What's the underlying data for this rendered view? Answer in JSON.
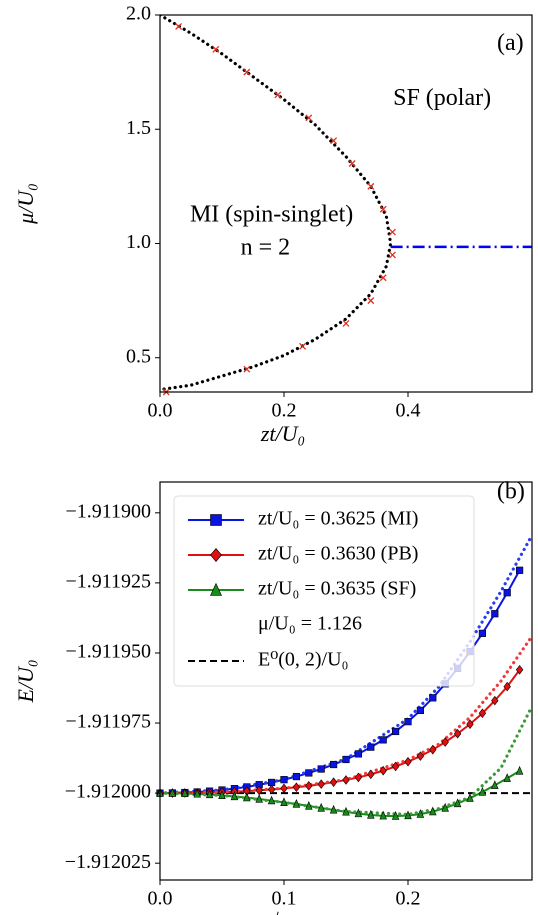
{
  "chart_data": [
    {
      "type": "line",
      "xlabel": "zt/U₀",
      "ylabel": "μ/U₀",
      "xlim": [
        0,
        0.6
      ],
      "ylim": [
        0.35,
        2.0
      ],
      "xticks": [
        {
          "value": 0,
          "label": "0.0"
        },
        0.2,
        0.4
      ],
      "yticks": [
        0.5,
        {
          "value": 1,
          "label": "1.0"
        },
        1.5,
        {
          "value": 2,
          "label": "2.0"
        }
      ],
      "annotations": [
        {
          "text": "(a)",
          "x": 0.565,
          "y": 1.87
        },
        {
          "text": "SF (polar)",
          "x": 0.455,
          "y": 1.63
        },
        {
          "text": "MI (spin-singlet)",
          "x": 0.18,
          "y": 1.12
        },
        {
          "text": "n = 2",
          "x": 0.17,
          "y": 0.975
        }
      ],
      "series": [
        {
          "color": "#000000",
          "style": "dotted",
          "x": [
            0,
            0.05,
            0.1,
            0.15,
            0.2,
            0.25,
            0.3,
            0.34,
            0.365,
            0.372,
            0.365,
            0.34,
            0.3,
            0.25,
            0.2,
            0.15,
            0.1,
            0.05,
            0
          ],
          "values": [
            2.0,
            1.92,
            1.83,
            1.73,
            1.63,
            1.52,
            1.38,
            1.25,
            1.12,
            1.0,
            0.9,
            0.78,
            0.67,
            0.58,
            0.51,
            0.46,
            0.42,
            0.38,
            0.36
          ]
        },
        {
          "color": "#e03020",
          "marker": "x",
          "x": [
            0.03,
            0.09,
            0.14,
            0.19,
            0.24,
            0.28,
            0.31,
            0.34,
            0.36,
            0.375,
            0.375,
            0.36,
            0.34,
            0.3,
            0.23,
            0.14,
            0.01
          ],
          "values": [
            1.95,
            1.85,
            1.75,
            1.65,
            1.55,
            1.45,
            1.35,
            1.25,
            1.15,
            1.05,
            0.95,
            0.85,
            0.75,
            0.65,
            0.55,
            0.45,
            0.35
          ]
        },
        {
          "color": "#0000ff",
          "style": "dashdot",
          "x": [
            0.372,
            0.6
          ],
          "values": [
            0.985,
            0.985
          ]
        }
      ]
    },
    {
      "type": "line",
      "xlabel": "√nc",
      "ylabel": "E/U₀",
      "xlim": [
        0,
        0.3
      ],
      "ylim": [
        -1.912031,
        -1.911889
      ],
      "xticks": [
        {
          "value": 0,
          "label": "0.0"
        },
        0.1,
        0.2
      ],
      "yticks": [
        {
          "value": -1.9119,
          "label": "−1.911900"
        },
        {
          "value": -1.911925,
          "label": "−1.911925"
        },
        {
          "value": -1.91195,
          "label": "−1.911950"
        },
        {
          "value": -1.911975,
          "label": "−1.911975"
        },
        {
          "value": -1.912,
          "label": "−1.912000"
        },
        {
          "value": -1.912025,
          "label": "−1.912025"
        }
      ],
      "annotations": [
        {
          "text": "(b)",
          "x": 0.283,
          "y": -1.911893
        }
      ],
      "legend_note": "μ/U₀ = 1.126",
      "reference_line": {
        "value": -1.912,
        "label": "E⁰(0, 2)/U₀",
        "color": "#000000"
      },
      "x": [
        0,
        0.01,
        0.02,
        0.03,
        0.04,
        0.05,
        0.06,
        0.07,
        0.08,
        0.09,
        0.1,
        0.11,
        0.12,
        0.13,
        0.14,
        0.15,
        0.16,
        0.17,
        0.18,
        0.19,
        0.2,
        0.21,
        0.22,
        0.23,
        0.24,
        0.25,
        0.26,
        0.27,
        0.28,
        0.29
      ],
      "series": [
        {
          "name": "zt/U₀ = 0.3625 (MI)",
          "color": "#0a14e0",
          "marker": "square",
          "values": [
            -1.912,
            -1.91199995,
            -1.9119998,
            -1.9119996,
            -1.9119993,
            -1.9119989,
            -1.9119984,
            -1.9119978,
            -1.911997,
            -1.9119962,
            -1.9119952,
            -1.9119941,
            -1.9119928,
            -1.9119914,
            -1.9119898,
            -1.911988,
            -1.911986,
            -1.9119836,
            -1.911981,
            -1.911978,
            -1.9119745,
            -1.9119705,
            -1.911966,
            -1.911961,
            -1.9119555,
            -1.9119495,
            -1.911943,
            -1.911936,
            -1.9119285,
            -1.9119205
          ]
        },
        {
          "name": "zt/U₀ = 0.3630 (PB)",
          "color": "#e01010",
          "marker": "diamond",
          "values": [
            -1.912,
            -1.912,
            -1.91199995,
            -1.9119999,
            -1.9119998,
            -1.91199965,
            -1.9119995,
            -1.9119993,
            -1.911999,
            -1.9119987,
            -1.9119983,
            -1.9119979,
            -1.9119974,
            -1.9119968,
            -1.9119961,
            -1.9119953,
            -1.9119944,
            -1.9119933,
            -1.911992,
            -1.9119905,
            -1.9119888,
            -1.9119868,
            -1.9119845,
            -1.9119818,
            -1.9119788,
            -1.9119754,
            -1.9119715,
            -1.911967,
            -1.911962,
            -1.911956
          ]
        },
        {
          "name": "zt/U₀ = 0.3635 (SF)",
          "color": "#1a8a1a",
          "marker": "triangle",
          "values": [
            -1.912,
            -1.912,
            -1.9120001,
            -1.9120003,
            -1.9120005,
            -1.9120008,
            -1.9120012,
            -1.9120016,
            -1.9120021,
            -1.9120027,
            -1.9120033,
            -1.9120039,
            -1.9120046,
            -1.9120053,
            -1.912006,
            -1.9120067,
            -1.9120073,
            -1.9120078,
            -1.9120081,
            -1.9120082,
            -1.912008,
            -1.9120075,
            -1.9120066,
            -1.9120053,
            -1.9120037,
            -1.9120018,
            -1.9119996,
            -1.9119972,
            -1.9119947,
            -1.9119921
          ]
        },
        {
          "color": "#2a3cf0",
          "style": "dotted",
          "x": [
            0,
            0.05,
            0.1,
            0.15,
            0.2,
            0.225,
            0.25,
            0.275,
            0.3
          ],
          "values": [
            -1.912,
            -1.9119989,
            -1.9119952,
            -1.9119878,
            -1.9119735,
            -1.911962,
            -1.911946,
            -1.911928,
            -1.911908
          ]
        },
        {
          "color": "#f03a3a",
          "style": "dotted",
          "x": [
            0,
            0.05,
            0.1,
            0.15,
            0.2,
            0.225,
            0.25,
            0.275,
            0.3
          ],
          "values": [
            -1.912,
            -1.91199965,
            -1.9119983,
            -1.9119952,
            -1.9119882,
            -1.9119825,
            -1.911973,
            -1.91196,
            -1.911944
          ]
        },
        {
          "color": "#3a9a3a",
          "style": "dotted",
          "x": [
            0,
            0.05,
            0.1,
            0.15,
            0.2,
            0.225,
            0.25,
            0.275,
            0.3
          ],
          "values": [
            -1.912,
            -1.9120008,
            -1.9120033,
            -1.9120066,
            -1.9120076,
            -1.9120055,
            -1.9120015,
            -1.911991,
            -1.911969
          ]
        }
      ]
    }
  ]
}
